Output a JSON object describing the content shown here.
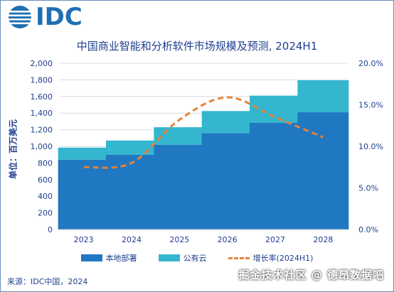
{
  "logo": {
    "text": "IDC"
  },
  "chart_data": {
    "type": "bar",
    "title": "中国商业智能和分析软件市场规模及预测, 2024H1",
    "ylabel": "单位：百万美元",
    "categories": [
      "2023",
      "2024",
      "2025",
      "2026",
      "2027",
      "2028"
    ],
    "series": [
      {
        "name": "本地部署",
        "type": "bar",
        "stack": "total",
        "color": "#1f78c1",
        "values": [
          840,
          900,
          1020,
          1160,
          1285,
          1410
        ]
      },
      {
        "name": "公有云",
        "type": "bar",
        "stack": "total",
        "color": "#35b6cf",
        "values": [
          145,
          170,
          210,
          265,
          325,
          385
        ]
      },
      {
        "name": "增长率(2024H1)",
        "type": "line",
        "axis": "right",
        "style": "dashed",
        "color": "#e4823b",
        "values": [
          7.5,
          8.0,
          13.2,
          15.9,
          13.5,
          11.1
        ]
      }
    ],
    "ylim": [
      0,
      2000
    ],
    "y_ticks": [
      "0",
      "200",
      "400",
      "600",
      "800",
      "1,000",
      "1,200",
      "1,400",
      "1,600",
      "1,800",
      "2,000"
    ],
    "y2lim": [
      0,
      20
    ],
    "y2_ticks": [
      "0.0%",
      "5.0%",
      "10.0%",
      "15.0%",
      "20.0%"
    ],
    "grid": true,
    "legend_position": "bottom"
  },
  "source": "来源：IDC中国，2024",
  "watermark": "掘金技术社区 @ 德昂数据吧"
}
